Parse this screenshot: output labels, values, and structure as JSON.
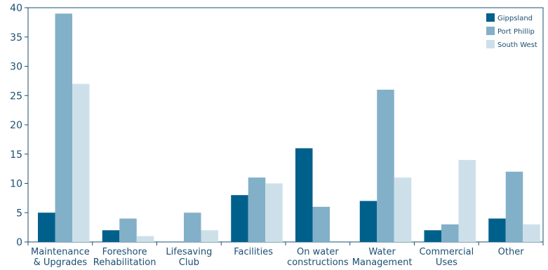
{
  "chart_data": {
    "type": "bar",
    "categories": [
      [
        "Maintenance",
        "& Upgrades"
      ],
      [
        "Foreshore",
        "Rehabilitation"
      ],
      [
        "Lifesaving",
        "Club"
      ],
      [
        "Facilities"
      ],
      [
        "On water",
        "constructions"
      ],
      [
        "Water",
        "Management"
      ],
      [
        "Commercial",
        "Uses"
      ],
      [
        "Other"
      ]
    ],
    "series": [
      {
        "name": "Gippsland",
        "color": "#00608c",
        "values": [
          5,
          2,
          0,
          8,
          16,
          7,
          2,
          4
        ]
      },
      {
        "name": "Port Phillip",
        "color": "#82b0c8",
        "values": [
          39,
          4,
          5,
          11,
          6,
          26,
          3,
          12
        ]
      },
      {
        "name": "South West",
        "color": "#cde0ea",
        "values": [
          27,
          1,
          2,
          10,
          0,
          11,
          14,
          3
        ]
      }
    ],
    "ylim": [
      0,
      40
    ],
    "yticks": [
      0,
      5,
      10,
      15,
      20,
      25,
      30,
      35,
      40
    ],
    "axis_color": "#1b4f72",
    "legend_position": "top-right",
    "grid": false
  }
}
